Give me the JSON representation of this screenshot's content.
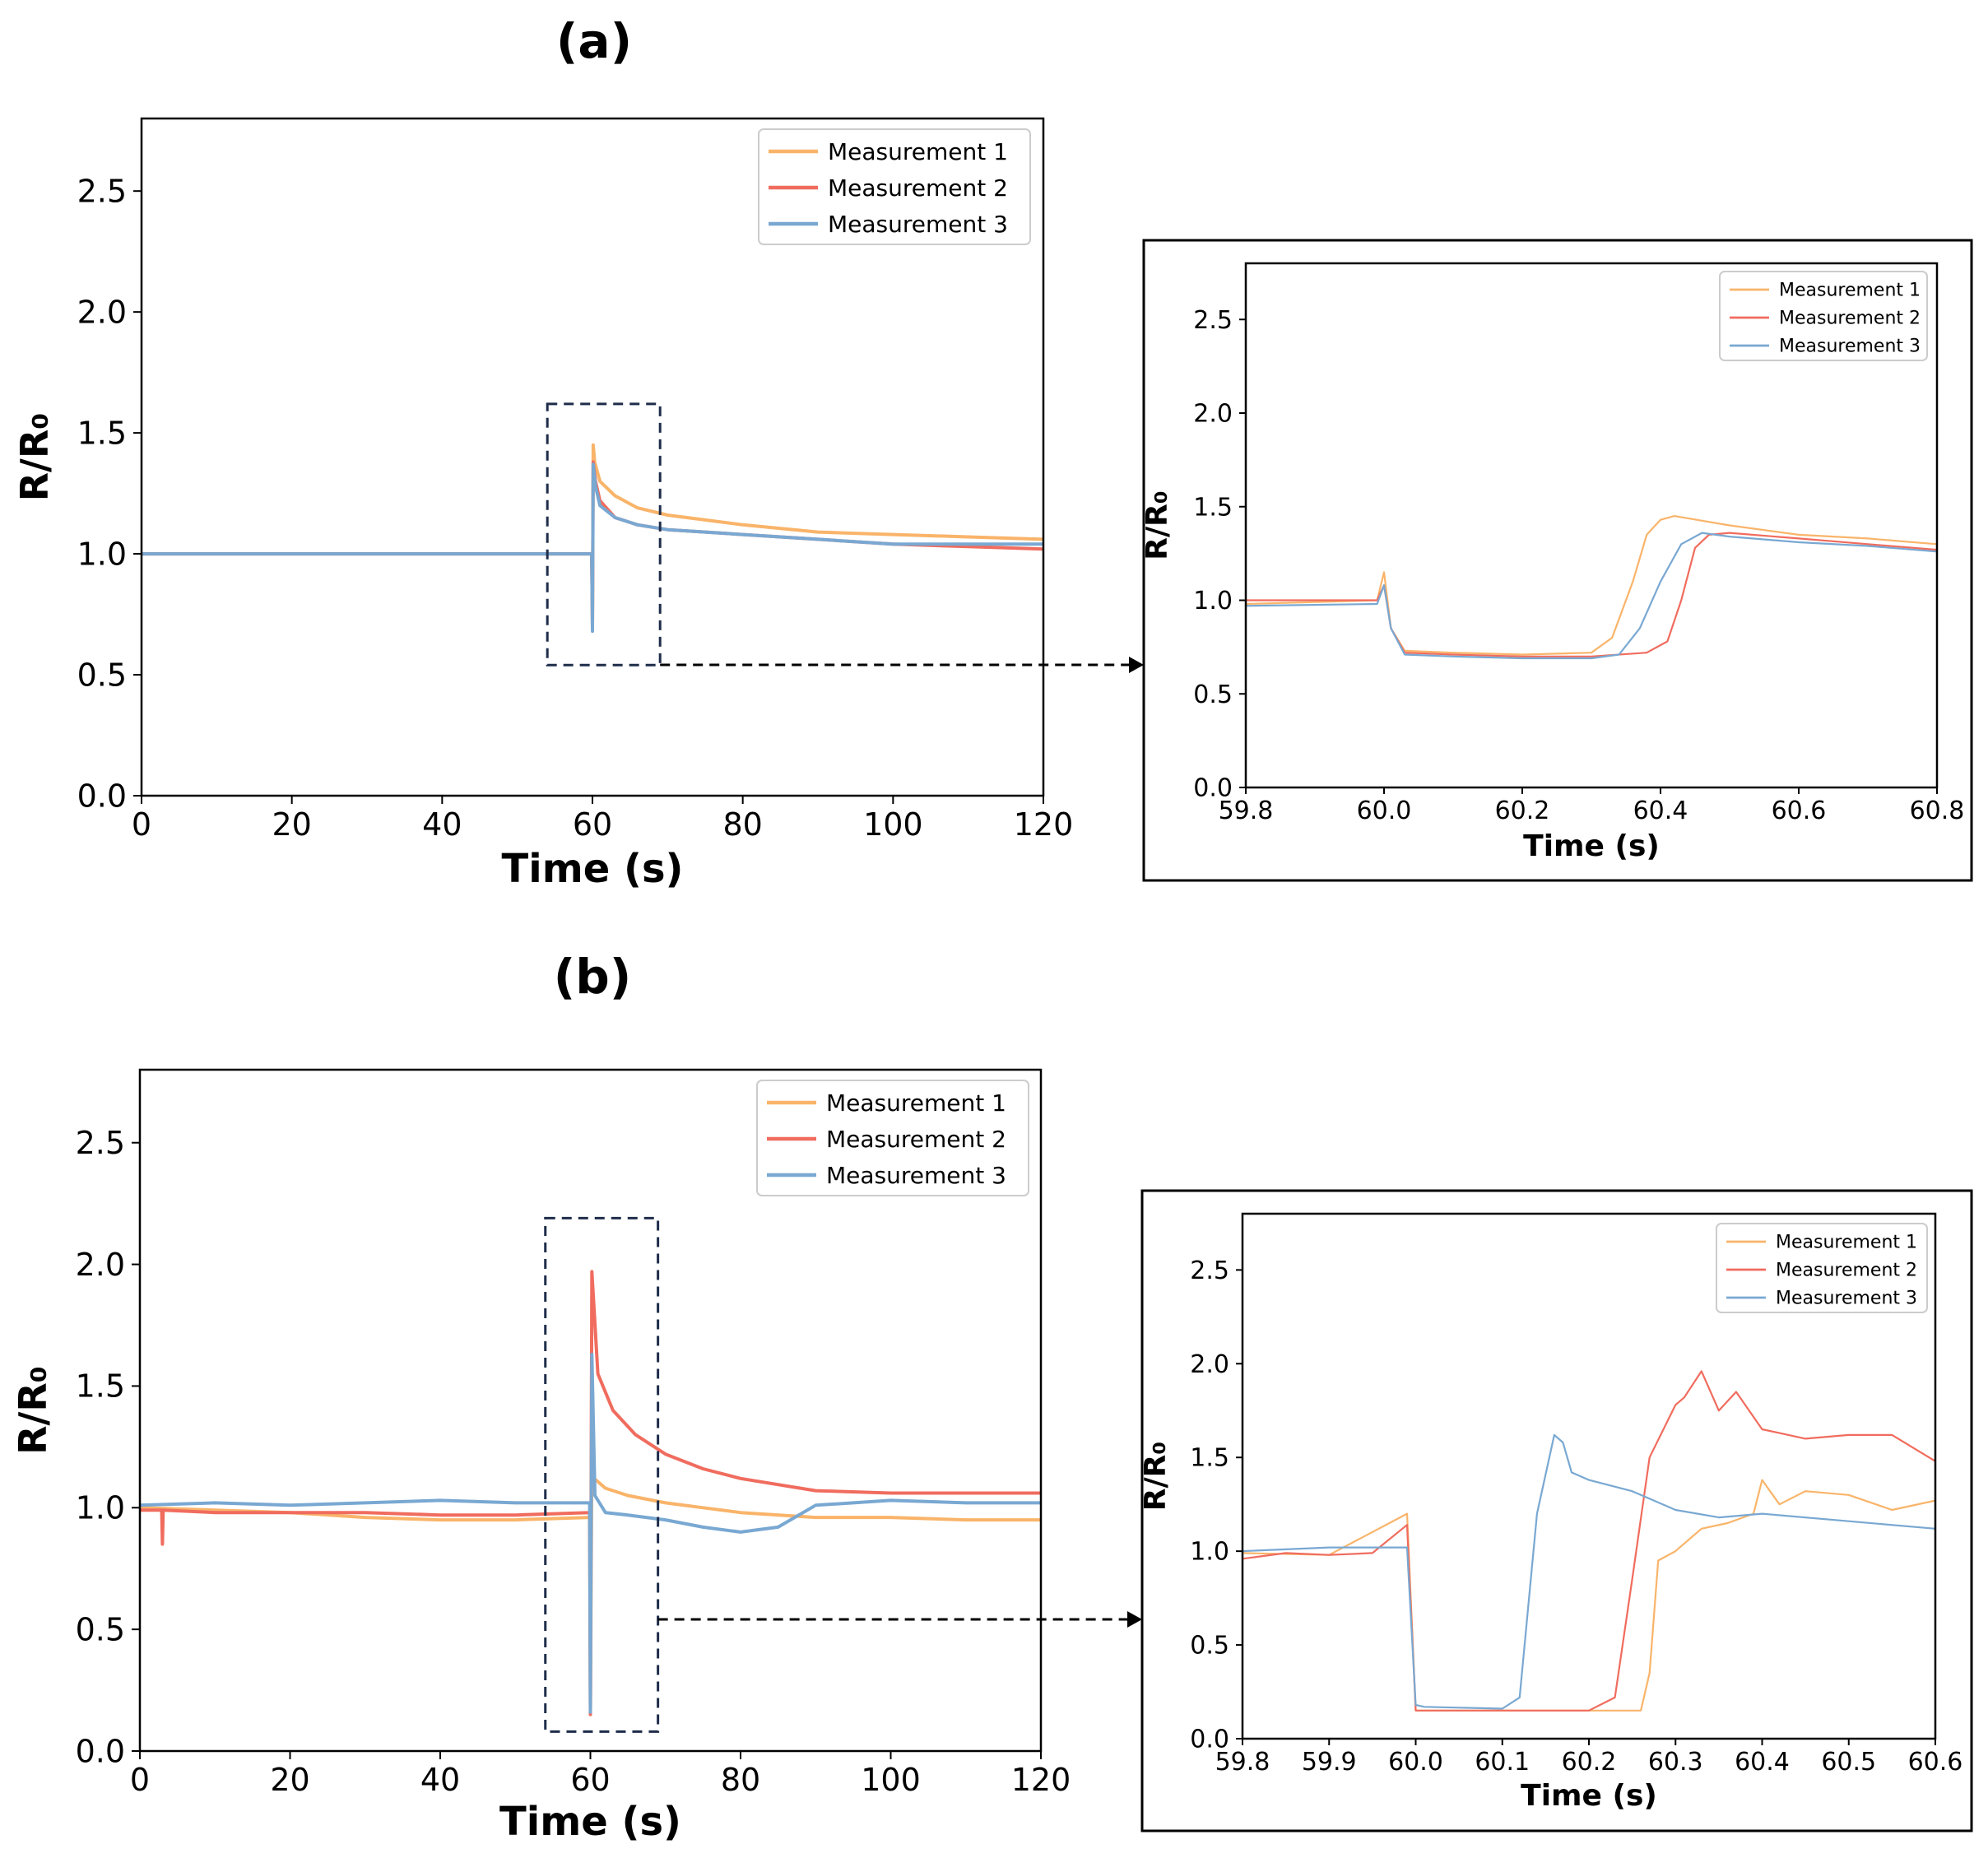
{
  "figure": {
    "panel_labels": [
      "(a)",
      "(b)"
    ]
  },
  "colors": {
    "measurement_1": "#F9B46A",
    "measurement_2": "#F06C5E",
    "measurement_3": "#79A8D2"
  },
  "chart_data": [
    {
      "id": "a-main",
      "type": "line",
      "xlabel": "Time (s)",
      "ylabel": "R/R₀",
      "xlim": [
        0,
        120
      ],
      "ylim": [
        0,
        2.8
      ],
      "xticks": [
        0,
        20,
        40,
        60,
        80,
        100,
        120
      ],
      "yticks": [
        "0.0",
        "0.5",
        "1.0",
        "1.5",
        "2.0",
        "2.5"
      ],
      "legend": "top-right",
      "series": [
        {
          "name": "Measurement 1",
          "color": "#F9B46A",
          "x": [
            0,
            30,
            59.9,
            60.0,
            60.1,
            60.3,
            61,
            63,
            66,
            70,
            75,
            80,
            90,
            100,
            110,
            120
          ],
          "y": [
            1.0,
            1.0,
            1.0,
            0.72,
            1.45,
            1.38,
            1.3,
            1.24,
            1.19,
            1.16,
            1.14,
            1.12,
            1.09,
            1.08,
            1.07,
            1.06
          ]
        },
        {
          "name": "Measurement 2",
          "color": "#F06C5E",
          "x": [
            0,
            30,
            59.9,
            60.0,
            60.1,
            60.4,
            61,
            63,
            66,
            70,
            75,
            80,
            90,
            100,
            110,
            120
          ],
          "y": [
            1.0,
            1.0,
            1.0,
            0.7,
            1.38,
            1.3,
            1.22,
            1.15,
            1.12,
            1.1,
            1.09,
            1.08,
            1.06,
            1.04,
            1.03,
            1.02
          ]
        },
        {
          "name": "Measurement 3",
          "color": "#79A8D2",
          "x": [
            0,
            30,
            59.9,
            60.0,
            60.1,
            60.4,
            61,
            63,
            66,
            70,
            75,
            80,
            90,
            100,
            110,
            120
          ],
          "y": [
            1.0,
            1.0,
            1.0,
            0.68,
            1.37,
            1.28,
            1.2,
            1.15,
            1.12,
            1.1,
            1.09,
            1.08,
            1.06,
            1.04,
            1.04,
            1.04
          ]
        }
      ],
      "zoom_region": {
        "x": [
          54,
          69
        ],
        "y": [
          0.54,
          1.62
        ]
      }
    },
    {
      "id": "a-inset",
      "type": "line",
      "xlabel": "Time (s)",
      "ylabel": "R/R₀",
      "xlim": [
        59.8,
        60.8
      ],
      "ylim": [
        0,
        2.8
      ],
      "xticks": [
        "59.8",
        "60.0",
        "60.2",
        "60.4",
        "60.6",
        "60.8"
      ],
      "yticks": [
        "0.0",
        "0.5",
        "1.0",
        "1.5",
        "2.0",
        "2.5"
      ],
      "legend": "top-right",
      "series": [
        {
          "name": "Measurement 1",
          "color": "#F9B46A",
          "x": [
            59.8,
            59.99,
            60.0,
            60.01,
            60.03,
            60.1,
            60.2,
            60.3,
            60.33,
            60.36,
            60.38,
            60.4,
            60.42,
            60.5,
            60.6,
            60.7,
            60.8
          ],
          "y": [
            0.98,
            1.0,
            1.15,
            0.85,
            0.73,
            0.72,
            0.71,
            0.72,
            0.8,
            1.1,
            1.35,
            1.43,
            1.45,
            1.4,
            1.35,
            1.33,
            1.3
          ]
        },
        {
          "name": "Measurement 2",
          "color": "#F06C5E",
          "x": [
            59.8,
            59.99,
            60.0,
            60.01,
            60.03,
            60.1,
            60.2,
            60.3,
            60.38,
            60.41,
            60.43,
            60.45,
            60.47,
            60.5,
            60.6,
            60.7,
            60.8
          ],
          "y": [
            1.0,
            1.0,
            1.08,
            0.85,
            0.72,
            0.71,
            0.7,
            0.7,
            0.72,
            0.78,
            1.0,
            1.28,
            1.35,
            1.36,
            1.33,
            1.3,
            1.27
          ]
        },
        {
          "name": "Measurement 3",
          "color": "#79A8D2",
          "x": [
            59.8,
            59.99,
            60.0,
            60.01,
            60.03,
            60.1,
            60.2,
            60.3,
            60.34,
            60.37,
            60.4,
            60.43,
            60.46,
            60.5,
            60.6,
            60.7,
            60.8
          ],
          "y": [
            0.97,
            0.98,
            1.08,
            0.85,
            0.71,
            0.7,
            0.69,
            0.69,
            0.71,
            0.85,
            1.1,
            1.3,
            1.36,
            1.34,
            1.31,
            1.29,
            1.26
          ]
        }
      ]
    },
    {
      "id": "b-main",
      "type": "line",
      "xlabel": "Time (s)",
      "ylabel": "R/R₀",
      "xlim": [
        0,
        120
      ],
      "ylim": [
        0,
        2.8
      ],
      "xticks": [
        0,
        20,
        40,
        60,
        80,
        100,
        120
      ],
      "yticks": [
        "0.0",
        "0.5",
        "1.0",
        "1.5",
        "2.0",
        "2.5"
      ],
      "legend": "top-right",
      "series": [
        {
          "name": "Measurement 1",
          "color": "#F9B46A",
          "x": [
            0,
            10,
            20,
            30,
            40,
            50,
            59.9,
            60.0,
            60.2,
            60.5,
            62,
            65,
            70,
            75,
            80,
            90,
            100,
            110,
            120
          ],
          "y": [
            1.0,
            0.99,
            0.98,
            0.96,
            0.95,
            0.95,
            0.96,
            0.15,
            1.2,
            1.12,
            1.08,
            1.05,
            1.02,
            1.0,
            0.98,
            0.96,
            0.96,
            0.95,
            0.95
          ]
        },
        {
          "name": "Measurement 2",
          "color": "#F06C5E",
          "x": [
            0,
            2.9,
            3.0,
            3.1,
            10,
            20,
            30,
            40,
            50,
            59.9,
            60.0,
            60.2,
            61,
            63,
            66,
            70,
            75,
            80,
            90,
            100,
            110,
            120
          ],
          "y": [
            0.99,
            0.99,
            0.85,
            0.99,
            0.98,
            0.98,
            0.98,
            0.97,
            0.97,
            0.98,
            0.15,
            1.97,
            1.55,
            1.4,
            1.3,
            1.22,
            1.16,
            1.12,
            1.07,
            1.06,
            1.06,
            1.06
          ]
        },
        {
          "name": "Measurement 3",
          "color": "#79A8D2",
          "x": [
            0,
            10,
            20,
            30,
            40,
            50,
            59.9,
            60.0,
            60.2,
            60.6,
            62,
            65,
            70,
            75,
            80,
            85,
            90,
            100,
            110,
            120
          ],
          "y": [
            1.01,
            1.02,
            1.01,
            1.02,
            1.03,
            1.02,
            1.02,
            0.16,
            1.63,
            1.05,
            0.98,
            0.97,
            0.95,
            0.92,
            0.9,
            0.92,
            1.01,
            1.03,
            1.02,
            1.02
          ]
        }
      ],
      "zoom_region": {
        "x": [
          54,
          69
        ],
        "y": [
          0.08,
          2.19
        ]
      }
    },
    {
      "id": "b-inset",
      "type": "line",
      "xlabel": "Time (s)",
      "ylabel": "R/R₀",
      "xlim": [
        59.8,
        60.6
      ],
      "ylim": [
        0,
        2.8
      ],
      "xticks": [
        "59.8",
        "59.9",
        "60.0",
        "60.1",
        "60.2",
        "60.3",
        "60.4",
        "60.5",
        "60.6"
      ],
      "yticks": [
        "0.0",
        "0.5",
        "1.0",
        "1.5",
        "2.0",
        "2.5"
      ],
      "legend": "top-right",
      "series": [
        {
          "name": "Measurement 1",
          "color": "#F9B46A",
          "x": [
            59.8,
            59.9,
            59.99,
            60.0,
            60.01,
            60.1,
            60.2,
            60.26,
            60.27,
            60.28,
            60.3,
            60.33,
            60.36,
            60.39,
            60.4,
            60.42,
            60.45,
            60.5,
            60.55,
            60.6
          ],
          "y": [
            0.99,
            0.98,
            1.2,
            0.15,
            0.15,
            0.15,
            0.15,
            0.15,
            0.35,
            0.95,
            1.0,
            1.12,
            1.15,
            1.2,
            1.38,
            1.25,
            1.32,
            1.3,
            1.22,
            1.27
          ]
        },
        {
          "name": "Measurement 2",
          "color": "#F06C5E",
          "x": [
            59.8,
            59.85,
            59.9,
            59.95,
            59.99,
            60.0,
            60.01,
            60.1,
            60.2,
            60.23,
            60.25,
            60.27,
            60.3,
            60.31,
            60.33,
            60.35,
            60.37,
            60.4,
            60.45,
            60.5,
            60.55,
            60.6
          ],
          "y": [
            0.96,
            0.99,
            0.98,
            0.99,
            1.14,
            0.15,
            0.15,
            0.15,
            0.15,
            0.22,
            0.85,
            1.5,
            1.78,
            1.82,
            1.96,
            1.75,
            1.85,
            1.65,
            1.6,
            1.62,
            1.62,
            1.48
          ]
        },
        {
          "name": "Measurement 3",
          "color": "#79A8D2",
          "x": [
            59.8,
            59.9,
            59.99,
            60.0,
            60.01,
            60.1,
            60.12,
            60.14,
            60.16,
            60.17,
            60.18,
            60.2,
            60.25,
            60.3,
            60.35,
            60.4,
            60.5,
            60.6
          ],
          "y": [
            1.0,
            1.02,
            1.02,
            0.18,
            0.17,
            0.16,
            0.22,
            1.2,
            1.62,
            1.58,
            1.42,
            1.38,
            1.32,
            1.22,
            1.18,
            1.2,
            1.16,
            1.12
          ]
        }
      ]
    }
  ]
}
